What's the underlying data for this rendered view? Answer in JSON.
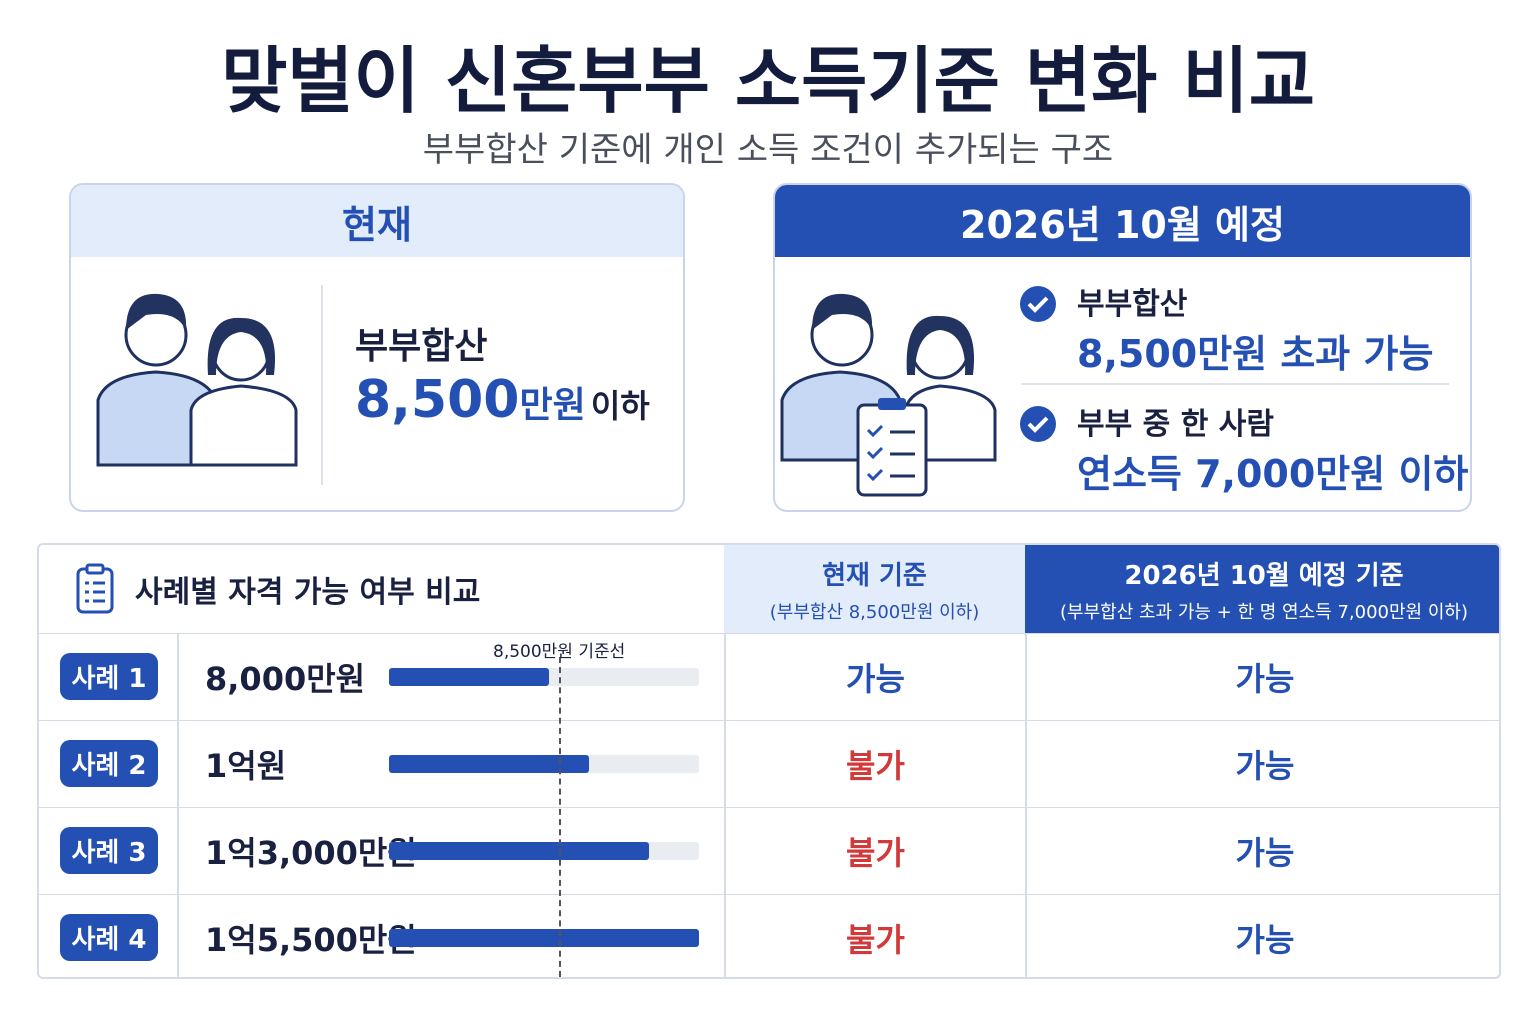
{
  "title": "맞벌이 신혼부부 소득기준 변화 비교",
  "subtitle": "부부합산 기준에 개인 소득 조건이 추가되는 구조",
  "current": {
    "header": "현재",
    "label": "부부합산",
    "amount": "8,500",
    "unit": "만원",
    "suffix": "이하"
  },
  "planned": {
    "header": "2026년 10월 예정",
    "items": [
      {
        "label": "부부합산",
        "value": "8,500만원 초과 가능"
      },
      {
        "label": "부부 중 한 사람",
        "value": "연소득 7,000만원 이하"
      }
    ]
  },
  "table": {
    "title": "사례별 자격 가능 여부 비교",
    "columns": [
      {
        "title": "현재 기준",
        "note": "(부부합산 8,500만원 이하)"
      },
      {
        "title": "2026년 10월 예정 기준",
        "note": "(부부합산 초과 가능 + 한 명 연소득 7,000만원 이하)"
      }
    ],
    "threshold": {
      "value": 8500,
      "label": "8,500만원 기준선"
    },
    "rows": [
      {
        "case": "사례 1",
        "amount": 8000,
        "amount_label": "8,000만원",
        "current": "가능",
        "planned": "가능"
      },
      {
        "case": "사례 2",
        "amount": 10000,
        "amount_label": "1억원",
        "current": "불가",
        "planned": "가능"
      },
      {
        "case": "사례 3",
        "amount": 13000,
        "amount_label": "1억3,000만원",
        "current": "불가",
        "planned": "가능"
      },
      {
        "case": "사례 4",
        "amount": 15500,
        "amount_label": "1억5,500만원",
        "current": "불가",
        "planned": "가능"
      }
    ]
  }
}
